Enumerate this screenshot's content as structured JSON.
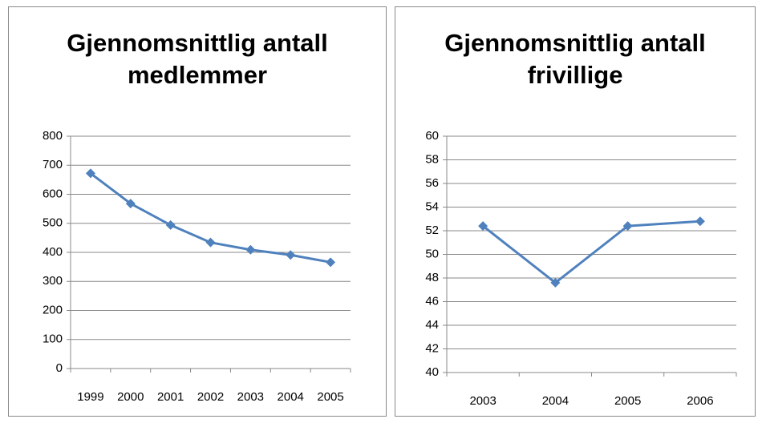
{
  "chart_data": [
    {
      "type": "line",
      "title": "Gjennomsnittlig antall medlemmer",
      "categories": [
        "1999",
        "2000",
        "2001",
        "2002",
        "2003",
        "2004",
        "2005"
      ],
      "values": [
        672,
        568,
        494,
        434,
        409,
        391,
        366
      ],
      "color": "#4f81bd",
      "ylim": [
        0,
        800
      ],
      "yticks": [
        0,
        100,
        200,
        300,
        400,
        500,
        600,
        700,
        800
      ],
      "grid": true
    },
    {
      "type": "line",
      "title": "Gjennomsnittlig antall frivillige",
      "categories": [
        "2003",
        "2004",
        "2005",
        "2006"
      ],
      "values": [
        52.4,
        47.6,
        52.4,
        52.8
      ],
      "color": "#4f81bd",
      "ylim": [
        40,
        60
      ],
      "yticks": [
        40,
        42,
        44,
        46,
        48,
        50,
        52,
        54,
        56,
        58,
        60
      ],
      "grid": true
    }
  ]
}
